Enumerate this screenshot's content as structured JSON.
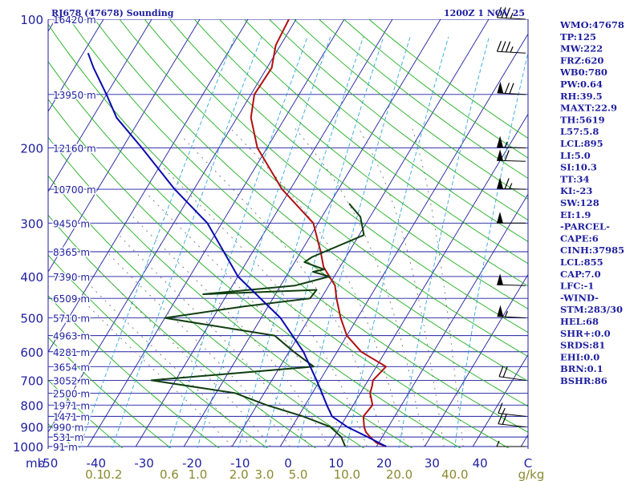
{
  "header": {
    "station": "RJ678 (47678) Sounding",
    "time": "1200Z  1 NOV 25"
  },
  "chart_data": {
    "type": "line",
    "subtype": "skew-T log-P sounding",
    "pressure_ticks": [
      100,
      200,
      300,
      400,
      500,
      600,
      700,
      800,
      900,
      1000
    ],
    "pressure_unit": "mb",
    "temperature_ticks": [
      "-50",
      "-40",
      "-30",
      "-20",
      "-10",
      "0",
      "10",
      "20",
      "30",
      "40",
      "C"
    ],
    "mixing_ratio_ticks": [
      "0.1",
      "0.2",
      "0.6",
      "1.0",
      "2.0",
      "3.0",
      "5.0",
      "10.0",
      "20.0",
      "40.0",
      "g/kg"
    ],
    "height_labels": [
      {
        "p": 100,
        "h": "16420 m"
      },
      {
        "p": 150,
        "h": "13950 m"
      },
      {
        "p": 200,
        "h": "12160 m"
      },
      {
        "p": 250,
        "h": "10700 m"
      },
      {
        "p": 300,
        "h": "9450 m"
      },
      {
        "p": 350,
        "h": "8365 m"
      },
      {
        "p": 400,
        "h": "7390 m"
      },
      {
        "p": 450,
        "h": "6509 m"
      },
      {
        "p": 500,
        "h": "5710 m"
      },
      {
        "p": 550,
        "h": "4963 m"
      },
      {
        "p": 600,
        "h": "4281 m"
      },
      {
        "p": 650,
        "h": "3654 m"
      },
      {
        "p": 700,
        "h": "3052 m"
      },
      {
        "p": 750,
        "h": "2500 m"
      },
      {
        "p": 800,
        "h": "1971 m"
      },
      {
        "p": 850,
        "h": "1471 m"
      },
      {
        "p": 900,
        "h": "990 m"
      },
      {
        "p": 950,
        "h": "531 m"
      },
      {
        "p": 1000,
        "h": "91 m"
      }
    ],
    "series": [
      {
        "role": "temperature",
        "color": "#b01010",
        "points": [
          [
            1000,
            22
          ],
          [
            980,
            19.5
          ],
          [
            950,
            17.5
          ],
          [
            925,
            16
          ],
          [
            900,
            15
          ],
          [
            850,
            13.5
          ],
          [
            800,
            14
          ],
          [
            750,
            12
          ],
          [
            720,
            11.5
          ],
          [
            700,
            11
          ],
          [
            650,
            12
          ],
          [
            600,
            5
          ],
          [
            550,
            0
          ],
          [
            500,
            -3.5
          ],
          [
            450,
            -6.8
          ],
          [
            420,
            -8.7
          ],
          [
            400,
            -11
          ],
          [
            380,
            -13.4
          ],
          [
            350,
            -15.9
          ],
          [
            300,
            -21
          ],
          [
            250,
            -31.7
          ],
          [
            200,
            -42
          ],
          [
            170,
            -47.1
          ],
          [
            150,
            -49.3
          ],
          [
            130,
            -49
          ],
          [
            115,
            -51
          ],
          [
            100,
            -51.5
          ]
        ]
      },
      {
        "role": "dewpoint",
        "color": "#103e10",
        "points": [
          [
            1000,
            13.5
          ],
          [
            950,
            11.5
          ],
          [
            900,
            8
          ],
          [
            850,
            1
          ],
          [
            800,
            -8
          ],
          [
            750,
            -16
          ],
          [
            700,
            -35
          ],
          [
            650,
            -3
          ],
          [
            600,
            -9
          ],
          [
            550,
            -15
          ],
          [
            500,
            -40
          ],
          [
            470,
            -25
          ],
          [
            450,
            -12.3
          ],
          [
            430,
            -12
          ],
          [
            440,
            -35
          ],
          [
            420,
            -17
          ],
          [
            400,
            -11
          ],
          [
            390,
            -15
          ],
          [
            385,
            -13
          ],
          [
            370,
            -18
          ],
          [
            360,
            -17
          ],
          [
            320,
            -9
          ],
          [
            290,
            -12
          ],
          [
            270,
            -16
          ]
        ]
      },
      {
        "role": "parcel",
        "color": "#0a0ab0",
        "points": [
          [
            1000,
            22
          ],
          [
            950,
            17
          ],
          [
            900,
            11.5
          ],
          [
            850,
            7
          ],
          [
            800,
            4.5
          ],
          [
            750,
            2
          ],
          [
            700,
            -0.7
          ],
          [
            600,
            -7
          ],
          [
            500,
            -16
          ],
          [
            400,
            -30
          ],
          [
            300,
            -43
          ],
          [
            250,
            -54
          ],
          [
            200,
            -66
          ],
          [
            170,
            -75
          ],
          [
            150,
            -80
          ],
          [
            130,
            -86
          ],
          [
            120,
            -89
          ]
        ]
      }
    ],
    "wind_barbs": [
      {
        "p": 100,
        "dir": 280,
        "kt": 35
      },
      {
        "p": 120,
        "dir": 280,
        "kt": 35
      },
      {
        "p": 150,
        "dir": 280,
        "kt": 70
      },
      {
        "p": 200,
        "dir": 275,
        "kt": 55
      },
      {
        "p": 215,
        "dir": 275,
        "kt": 60
      },
      {
        "p": 250,
        "dir": 275,
        "kt": 65
      },
      {
        "p": 300,
        "dir": 270,
        "kt": 50
      },
      {
        "p": 420,
        "dir": 275,
        "kt": 50
      },
      {
        "p": 500,
        "dir": 280,
        "kt": 55
      },
      {
        "p": 700,
        "dir": 295,
        "kt": 20
      },
      {
        "p": 850,
        "dir": 290,
        "kt": 15
      },
      {
        "p": 900,
        "dir": 290,
        "kt": 20
      },
      {
        "p": 1000,
        "dir": 270,
        "kt": 5
      }
    ],
    "grid": true
  },
  "indices": [
    "WMO:47678",
    "TP:125",
    "MW:222",
    "FRZ:620",
    "WB0:780",
    "PW:0.64",
    "RH:39.5",
    "MAXT:22.9",
    "TH:5619",
    "L57:5.8",
    "LCL:895",
    "LI:5.0",
    "SI:10.3",
    "TT:34",
    "KI:-23",
    "SW:128",
    "EI:1.9",
    "-PARCEL-",
    "CAPE:6",
    "CINH:37985",
    "LCL:855",
    "CAP:7.0",
    "LFC:-1",
    "-WIND-",
    "STM:283/30",
    "HEL:68",
    "SHR+:0.0",
    "SRDS:81",
    "EHI:0.0",
    "BRN:0.1",
    "BSHR:86"
  ],
  "colors": {
    "isobar": "#1e1ea0",
    "isotherm": "#1e1ea0",
    "dry_adiabat": "#1fae1f",
    "mixing_ratio": "#2fa8d8",
    "moist_adiabat": "#666666",
    "label": "#1e1ea0",
    "mixing_label": "#8a8a30"
  }
}
